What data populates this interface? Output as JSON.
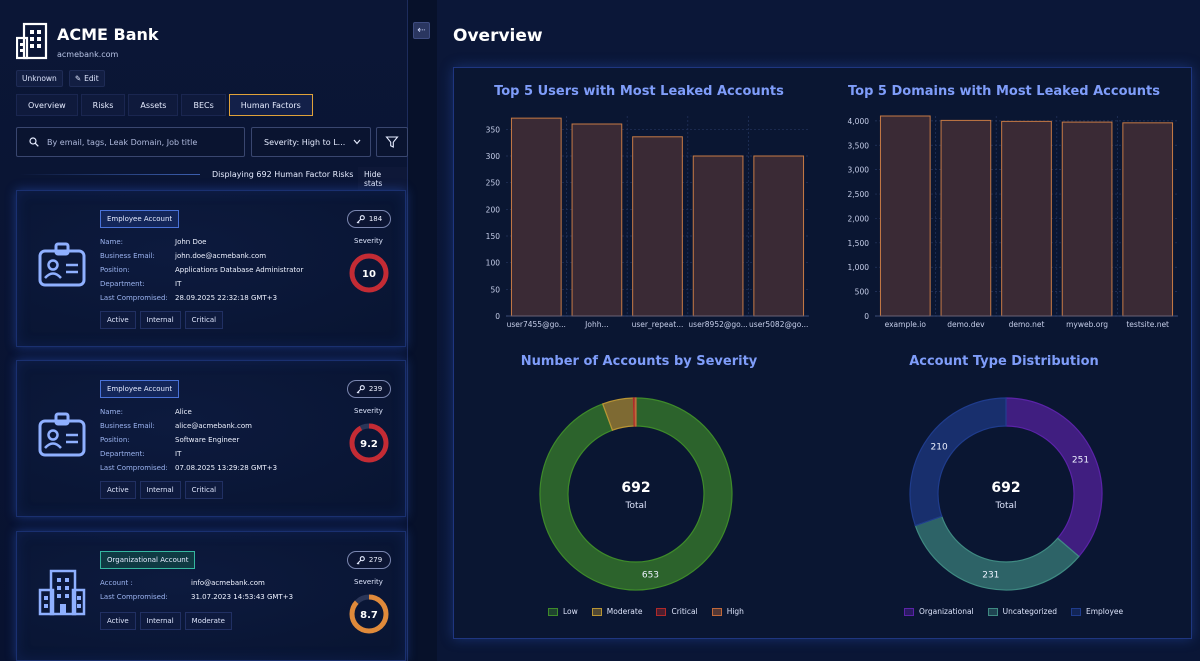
{
  "org": {
    "name": "ACME Bank",
    "domain": "acmebank.com",
    "status": "Unknown",
    "edit_label": "Edit"
  },
  "tabs": [
    "Overview",
    "Risks",
    "Assets",
    "BECs",
    "Human Factors"
  ],
  "active_tab": "Human Factors",
  "search": {
    "placeholder": "By email, tags, Leak Domain, Job title"
  },
  "severity_filter": "Severity: High to L...",
  "results_text": "Displaying 692 Human Factor Risks",
  "hide_stats": "Hide stats",
  "labels": {
    "name": "Name:",
    "email": "Business Email:",
    "position": "Position:",
    "department": "Department:",
    "last": "Last Compromised:",
    "account": "Account :",
    "severity": "Severity"
  },
  "cards": [
    {
      "type": "Employee Account",
      "name": "John Doe",
      "email": "john.doe@acmebank.com",
      "position": "Applications Database Administrator",
      "department": "IT",
      "last": "28.09.2025 22:32:18 GMT+3",
      "tags": [
        "Active",
        "Internal",
        "Critical"
      ],
      "leaks": "184",
      "severity": "10",
      "severity_value": 10,
      "color": "#c42b34"
    },
    {
      "type": "Employee Account",
      "name": "Alice",
      "email": "alice@acmebank.com",
      "position": "Software Engineer",
      "department": "IT",
      "last": "07.08.2025 13:29:28 GMT+3",
      "tags": [
        "Active",
        "Internal",
        "Critical"
      ],
      "leaks": "239",
      "severity": "9.2",
      "severity_value": 9.2,
      "color": "#c42b34"
    },
    {
      "type": "Organizational Account",
      "account": "info@acmebank.com",
      "last": "31.07.2023 14:53:43 GMT+3",
      "tags": [
        "Active",
        "Internal",
        "Moderate"
      ],
      "leaks": "279",
      "severity": "8.7",
      "severity_value": 8.7,
      "color": "#e08a3a"
    }
  ],
  "overview_title": "Overview",
  "chart_data": [
    {
      "type": "bar",
      "title": "Top 5 Users with Most Leaked Accounts",
      "categories": [
        "user7455@go...",
        "Johh...",
        "user_repeat...",
        "user8952@go...",
        "user5082@go..."
      ],
      "values": [
        371,
        360,
        336,
        300,
        300
      ],
      "ylim": [
        0,
        375
      ],
      "yticks": [
        0,
        50,
        100,
        150,
        200,
        250,
        300,
        350
      ]
    },
    {
      "type": "bar",
      "title": "Top 5 Domains with Most Leaked Accounts",
      "categories": [
        "example.io",
        "demo.dev",
        "demo.net",
        "myweb.org",
        "testsite.net"
      ],
      "values": [
        4100,
        4010,
        3990,
        3975,
        3960
      ],
      "ylim": [
        0,
        4100
      ],
      "yticks": [
        0,
        500,
        1000,
        1500,
        2000,
        2500,
        3000,
        3500,
        4000
      ],
      "ytick_labels": [
        "0",
        "500",
        "1,000",
        "1,500",
        "2,000",
        "2,500",
        "3,000",
        "3,500",
        "4,000"
      ]
    },
    {
      "type": "pie",
      "title": "Number of Accounts by Severity",
      "center_value": "692",
      "center_label": "Total",
      "slices": [
        {
          "name": "Low",
          "value": 653,
          "label": "653"
        },
        {
          "name": "Moderate",
          "value": 36,
          "label": ""
        },
        {
          "name": "Critical",
          "value": 2,
          "label": ""
        },
        {
          "name": "High",
          "value": 1,
          "label": ""
        }
      ]
    },
    {
      "type": "pie",
      "title": "Account Type Distribution",
      "center_value": "692",
      "center_label": "Total",
      "slices": [
        {
          "name": "Organizational",
          "value": 251,
          "label": "251"
        },
        {
          "name": "Uncategorized",
          "value": 231,
          "label": "231"
        },
        {
          "name": "Employee",
          "value": 210,
          "label": "210"
        }
      ]
    }
  ],
  "colors": {
    "bar_fill": "#3a2a35",
    "bar_stroke": "#c77a45",
    "low": "#3e8a2a",
    "moderate": "#b89434",
    "critical": "#b02a2a",
    "high": "#c0683a",
    "organizational": "#5b23a8",
    "uncategorized": "#3f8a82",
    "employee": "#1f3c8c"
  }
}
